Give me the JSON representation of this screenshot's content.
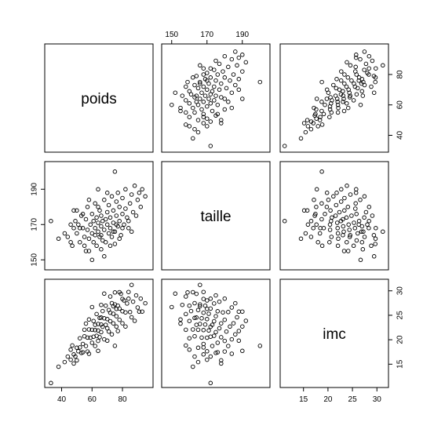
{
  "chart_data": {
    "type": "scatter-matrix",
    "variables": [
      {
        "name": "poids",
        "ticks": [
          40,
          60,
          80
        ],
        "range": [
          32,
          97
        ]
      },
      {
        "name": "taille",
        "ticks": [
          150,
          170,
          190
        ],
        "range": [
          147,
          203
        ]
      },
      {
        "name": "imc",
        "ticks": [
          15,
          20,
          25,
          30
        ],
        "range": [
          11.2,
          31.4
        ]
      }
    ],
    "tick_label_sets": {
      "poids": [
        "40",
        "60",
        "80"
      ],
      "taille": [
        "150",
        "170",
        "190"
      ],
      "imc": [
        "15",
        "20",
        "25",
        "30"
      ]
    },
    "top_axis_ticks": [
      "150",
      "170",
      "190"
    ],
    "right_axis_ticks_row1": [
      "40",
      "60",
      "80"
    ],
    "right_axis_ticks_row3": [
      "15",
      "20",
      "25",
      "30"
    ],
    "left_axis_ticks_row2": [
      "150",
      "170",
      "190"
    ],
    "bottom_axis_ticks_col1": [
      "40",
      "60",
      "80"
    ],
    "bottom_axis_ticks_col3": [
      "15",
      "20",
      "25",
      "30"
    ],
    "observations": [
      [
        33,
        172
      ],
      [
        38,
        162
      ],
      [
        42,
        165
      ],
      [
        44,
        163
      ],
      [
        46,
        160
      ],
      [
        47,
        158
      ],
      [
        48,
        168
      ],
      [
        49,
        172
      ],
      [
        50,
        165
      ],
      [
        50,
        178
      ],
      [
        51,
        170
      ],
      [
        52,
        160
      ],
      [
        53,
        175
      ],
      [
        54,
        168
      ],
      [
        55,
        163
      ],
      [
        55,
        158
      ],
      [
        56,
        173
      ],
      [
        57,
        167
      ],
      [
        57,
        180
      ],
      [
        58,
        162
      ],
      [
        58,
        155
      ],
      [
        59,
        170
      ],
      [
        60,
        176
      ],
      [
        60,
        165
      ],
      [
        61,
        172
      ],
      [
        61,
        160
      ],
      [
        62,
        168
      ],
      [
        62,
        182
      ],
      [
        63,
        174
      ],
      [
        63,
        158
      ],
      [
        64,
        166
      ],
      [
        64,
        171
      ],
      [
        65,
        178
      ],
      [
        65,
        163
      ],
      [
        66,
        169
      ],
      [
        66,
        175
      ],
      [
        67,
        161
      ],
      [
        67,
        172
      ],
      [
        68,
        184
      ],
      [
        68,
        167
      ],
      [
        69,
        173
      ],
      [
        69,
        160
      ],
      [
        70,
        170
      ],
      [
        70,
        177
      ],
      [
        71,
        165
      ],
      [
        71,
        181
      ],
      [
        72,
        168
      ],
      [
        72,
        174
      ],
      [
        73,
        163
      ],
      [
        73,
        186
      ],
      [
        74,
        171
      ],
      [
        74,
        178
      ],
      [
        75,
        166
      ],
      [
        75,
        159
      ],
      [
        76,
        175
      ],
      [
        76,
        183
      ],
      [
        77,
        169
      ],
      [
        77,
        188
      ],
      [
        78,
        172
      ],
      [
        78,
        180
      ],
      [
        79,
        164
      ],
      [
        80,
        176
      ],
      [
        80,
        185
      ],
      [
        81,
        170
      ],
      [
        82,
        179
      ],
      [
        82,
        190
      ],
      [
        83,
        174
      ],
      [
        84,
        168
      ],
      [
        85,
        182
      ],
      [
        86,
        187
      ],
      [
        87,
        177
      ],
      [
        88,
        192
      ],
      [
        89,
        175
      ],
      [
        90,
        184
      ],
      [
        91,
        188
      ],
      [
        92,
        180
      ],
      [
        93,
        190
      ],
      [
        95,
        186
      ],
      [
        60,
        150
      ],
      [
        66,
        156
      ],
      [
        72,
        158
      ],
      [
        56,
        155
      ],
      [
        68,
        152
      ],
      [
        78,
        162
      ],
      [
        84,
        172
      ],
      [
        52,
        168
      ],
      [
        46,
        170
      ],
      [
        64,
        180
      ],
      [
        70,
        188
      ],
      [
        58,
        184
      ],
      [
        62,
        164
      ],
      [
        74,
        166
      ],
      [
        76,
        170
      ],
      [
        80,
        168
      ],
      [
        86,
        166
      ],
      [
        66,
        164
      ],
      [
        54,
        176
      ],
      [
        48,
        178
      ],
      [
        75,
        200
      ],
      [
        64,
        190
      ]
    ],
    "xlabel": "",
    "ylabel": "",
    "title": ""
  }
}
